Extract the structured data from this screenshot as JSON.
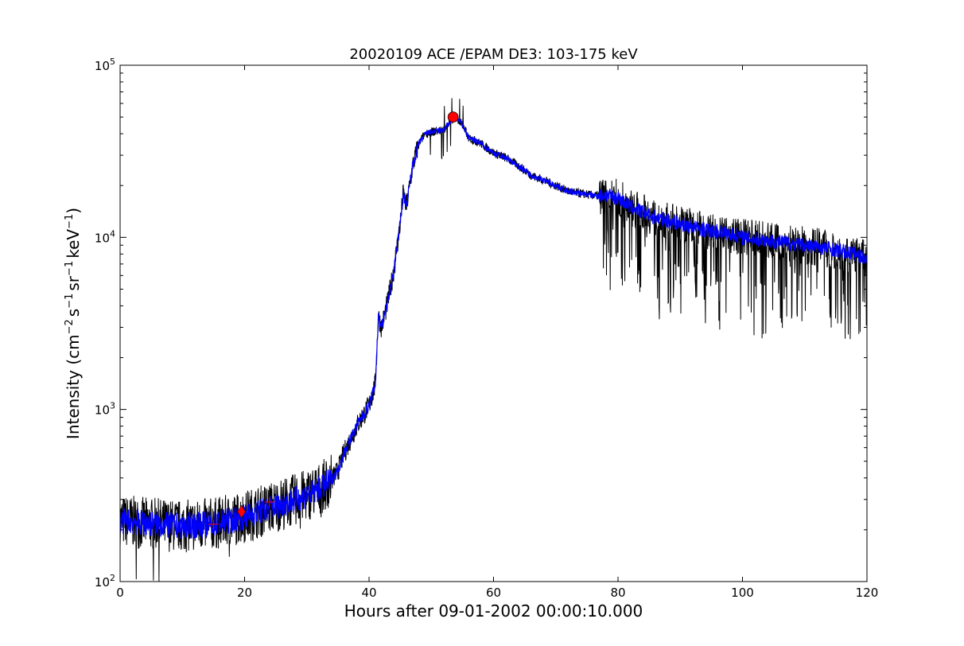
{
  "chart_data": {
    "type": "line",
    "title": "20020109 ACE /EPAM DE3: 103-175 keV",
    "xlabel": "Hours after 09-01-2002 00:00:10.000",
    "ylabel_main": "Intensity (cm",
    "ylabel_sup1": "−2",
    "ylabel_mid1": "s",
    "ylabel_sup2": "−1",
    "ylabel_mid2": "sr",
    "ylabel_sup3": "−1",
    "ylabel_mid3": "keV",
    "ylabel_sup4": "−1",
    "ylabel_end": ")",
    "xlim": [
      0,
      120
    ],
    "ylim": [
      100,
      100000
    ],
    "yscale": "log",
    "grid": false,
    "xticks": [
      {
        "value": 0,
        "label": "0"
      },
      {
        "value": 20,
        "label": "20"
      },
      {
        "value": 40,
        "label": "40"
      },
      {
        "value": 60,
        "label": "60"
      },
      {
        "value": 80,
        "label": "80"
      },
      {
        "value": 100,
        "label": "100"
      },
      {
        "value": 120,
        "label": "120"
      }
    ],
    "yticks": [
      {
        "value": 100,
        "base": "10",
        "exp": "2"
      },
      {
        "value": 1000,
        "base": "10",
        "exp": "3"
      },
      {
        "value": 10000,
        "base": "10",
        "exp": "4"
      },
      {
        "value": 100000,
        "base": "10",
        "exp": "5"
      }
    ],
    "series": [
      {
        "color": "#000000",
        "style": "raw-noisy",
        "x": [
          0,
          2,
          4,
          6,
          8,
          10,
          12,
          14,
          16,
          18,
          20,
          22,
          24,
          26,
          28,
          30,
          32,
          34,
          35,
          36,
          38,
          40,
          41,
          41.5,
          42,
          43,
          44,
          45,
          45.5,
          46,
          47,
          48,
          49,
          50,
          52,
          53,
          54,
          55,
          56,
          58,
          60,
          62,
          64,
          66,
          68,
          70,
          72,
          74,
          76,
          78,
          80,
          82,
          84,
          86,
          88,
          90,
          92,
          94,
          96,
          98,
          100,
          102,
          104,
          106,
          108,
          110,
          112,
          114,
          116,
          118,
          120
        ],
        "y": [
          225,
          222,
          218,
          215,
          212,
          210,
          212,
          215,
          220,
          228,
          238,
          252,
          268,
          282,
          298,
          318,
          345,
          390,
          440,
          560,
          800,
          1050,
          1400,
          3500,
          3000,
          4200,
          6500,
          12000,
          18000,
          15000,
          26000,
          35000,
          40000,
          41000,
          42000,
          47000,
          50000,
          45000,
          38000,
          35000,
          31000,
          29000,
          26000,
          23000,
          21500,
          20000,
          18500,
          18000,
          17500,
          17500,
          17000,
          15000,
          14000,
          13000,
          12500,
          12000,
          11500,
          11000,
          10800,
          10500,
          10000,
          9800,
          9600,
          9400,
          9200,
          9000,
          8800,
          8600,
          8300,
          8000,
          7500
        ]
      },
      {
        "color": "#0000ff",
        "style": "smoothed",
        "x": [
          0,
          2,
          4,
          6,
          8,
          10,
          12,
          14,
          16,
          18,
          20,
          22,
          24,
          26,
          28,
          30,
          32,
          34,
          35,
          36,
          38,
          40,
          41,
          41.5,
          42,
          43,
          44,
          45,
          45.5,
          46,
          47,
          48,
          49,
          50,
          52,
          53,
          54,
          55,
          56,
          58,
          60,
          62,
          64,
          66,
          68,
          70,
          72,
          74,
          76,
          78,
          80,
          82,
          84,
          86,
          88,
          90,
          92,
          94,
          96,
          98,
          100,
          102,
          104,
          106,
          108,
          110,
          112,
          114,
          116,
          118,
          120
        ],
        "y": [
          225,
          222,
          218,
          215,
          212,
          210,
          212,
          215,
          220,
          228,
          238,
          252,
          268,
          282,
          298,
          318,
          345,
          390,
          440,
          560,
          800,
          1050,
          1400,
          3500,
          3000,
          4200,
          6500,
          12000,
          18000,
          15000,
          26000,
          35000,
          40000,
          41000,
          42000,
          47000,
          50000,
          45000,
          38000,
          35000,
          31000,
          29000,
          26000,
          23000,
          21500,
          20000,
          18500,
          18000,
          17500,
          17500,
          17000,
          15000,
          14000,
          13000,
          12500,
          12000,
          11500,
          11000,
          10800,
          10500,
          10000,
          9800,
          9600,
          9400,
          9200,
          9000,
          8800,
          8600,
          8300,
          8000,
          7500
        ]
      }
    ],
    "markers": [
      {
        "shape": "plus",
        "color": "#ff0000",
        "x": 15,
        "y": 215
      },
      {
        "shape": "diamond",
        "color": "#ff0000",
        "x": 19.5,
        "y": 255
      },
      {
        "shape": "plus",
        "color": "#ff0000",
        "x": 24,
        "y": 290
      },
      {
        "shape": "circle",
        "color": "#ff0000",
        "x": 53.5,
        "y": 50000
      }
    ]
  }
}
